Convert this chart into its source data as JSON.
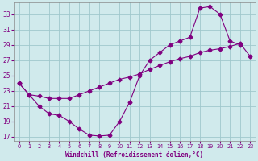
{
  "xlabel": "Windchill (Refroidissement éolien,°C)",
  "xlim": [
    -0.5,
    23.5
  ],
  "ylim": [
    16.5,
    34.5
  ],
  "xticks": [
    0,
    1,
    2,
    3,
    4,
    5,
    6,
    7,
    8,
    9,
    10,
    11,
    12,
    13,
    14,
    15,
    16,
    17,
    18,
    19,
    20,
    21,
    22,
    23
  ],
  "yticks": [
    17,
    19,
    21,
    23,
    25,
    27,
    29,
    31,
    33
  ],
  "curve1_x": [
    0,
    1,
    2,
    3,
    4,
    5,
    6,
    7,
    8,
    9,
    10,
    11,
    12,
    13,
    14,
    15,
    16,
    17,
    18,
    19,
    20,
    21,
    22
  ],
  "curve1_y": [
    24.0,
    22.5,
    21.0,
    20.0,
    19.8,
    19.0,
    18.0,
    17.2,
    17.1,
    17.2,
    19.0,
    21.5,
    25.0,
    27.0,
    28.0,
    29.0,
    29.5,
    30.0,
    33.8,
    34.0,
    33.0,
    29.5,
    29.0
  ],
  "curve2_x": [
    0,
    1,
    2,
    3,
    4,
    5,
    6,
    7,
    8,
    9,
    10,
    11,
    12,
    13,
    14,
    15,
    16,
    17,
    18,
    19,
    20,
    21,
    22,
    23
  ],
  "curve2_y": [
    24.0,
    22.5,
    22.3,
    22.0,
    22.0,
    22.0,
    22.5,
    23.0,
    23.5,
    24.0,
    24.5,
    24.8,
    25.2,
    25.8,
    26.3,
    26.8,
    27.2,
    27.5,
    28.0,
    28.3,
    28.5,
    28.8,
    29.2,
    27.5
  ],
  "line_color": "#800080",
  "bg_color": "#d0eaec",
  "grid_color": "#a0c8cc",
  "tick_color": "#800080",
  "label_color": "#800080",
  "marker": "D",
  "marker_size": 2.5
}
